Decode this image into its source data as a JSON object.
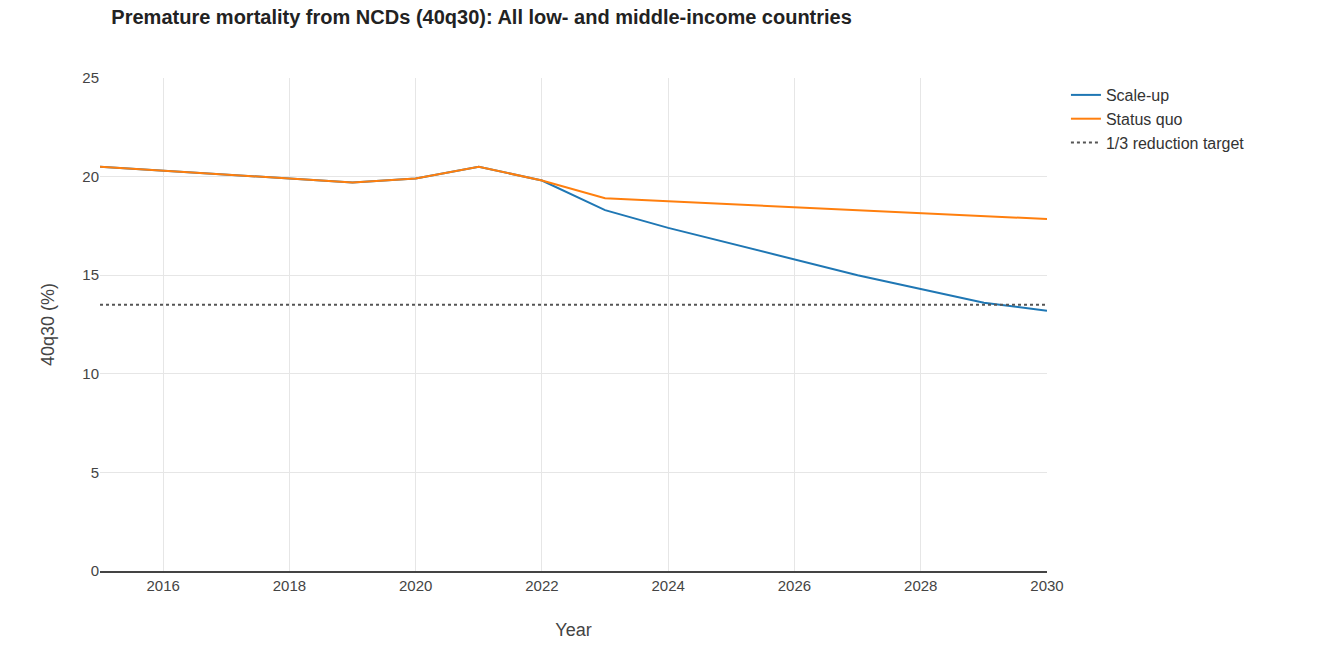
{
  "chart_data": {
    "type": "line",
    "title": "Premature mortality from NCDs (40q30): All low- and middle-income countries",
    "x_label": "Year",
    "y_label": "40q30 (%)",
    "x": [
      2015,
      2016,
      2017,
      2018,
      2019,
      2020,
      2021,
      2022,
      2023,
      2024,
      2025,
      2026,
      2027,
      2028,
      2029,
      2030
    ],
    "series": [
      {
        "name": "Scale-up",
        "color": "#1f77b4",
        "line_style": "solid",
        "values": [
          20.5,
          20.3,
          20.1,
          19.9,
          19.7,
          19.9,
          20.5,
          19.8,
          18.3,
          17.4,
          16.6,
          15.8,
          15.0,
          14.3,
          13.6,
          13.2
        ]
      },
      {
        "name": "Status quo",
        "color": "#ff7f0e",
        "line_style": "solid",
        "values": [
          20.5,
          20.3,
          20.1,
          19.9,
          19.7,
          19.9,
          20.5,
          19.8,
          18.9,
          18.75,
          18.6,
          18.45,
          18.3,
          18.15,
          18.0,
          17.85
        ]
      },
      {
        "name": "1/3 reduction target",
        "color": "#555555",
        "line_style": "dotted",
        "values": [
          13.5,
          13.5,
          13.5,
          13.5,
          13.5,
          13.5,
          13.5,
          13.5,
          13.5,
          13.5,
          13.5,
          13.5,
          13.5,
          13.5,
          13.5,
          13.5
        ]
      }
    ],
    "xlim": [
      2015,
      2030
    ],
    "xticks": [
      2016,
      2018,
      2020,
      2022,
      2024,
      2026,
      2028,
      2030
    ],
    "ylim": [
      0,
      25
    ],
    "yticks": [
      0,
      5,
      10,
      15,
      20,
      25
    ],
    "grid": true,
    "legend": "right"
  }
}
